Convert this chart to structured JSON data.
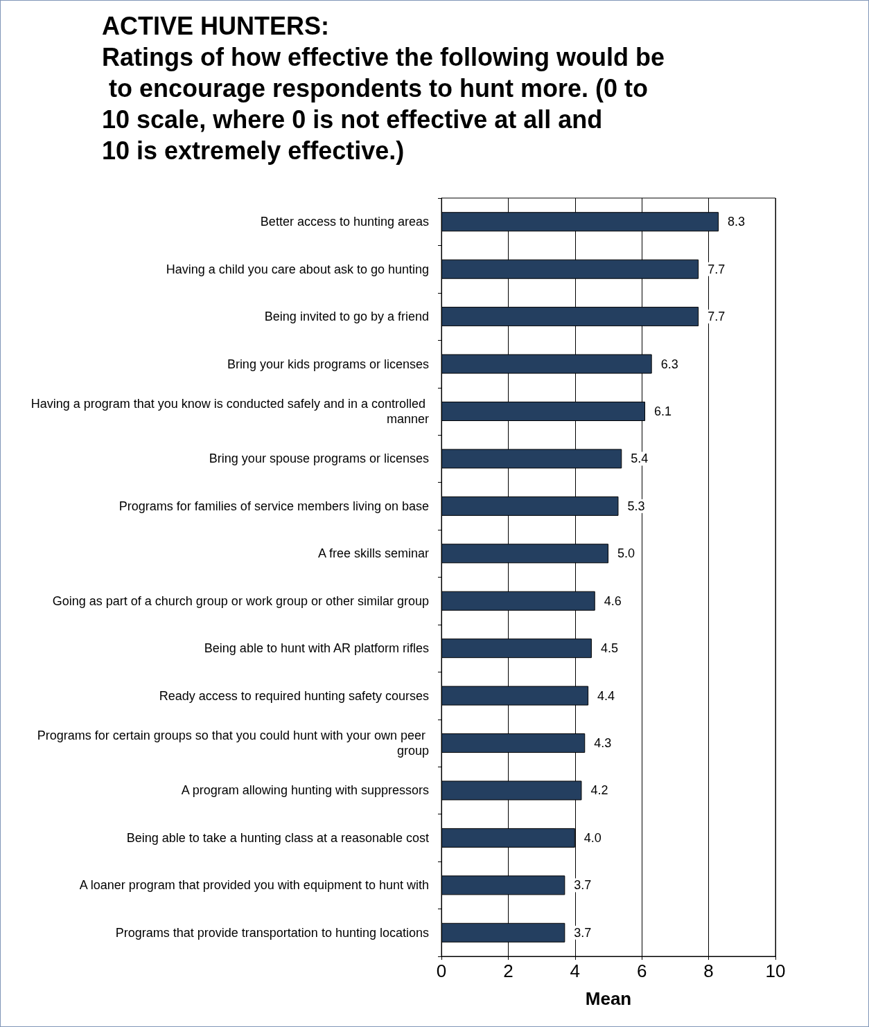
{
  "chart_data": {
    "type": "bar",
    "orientation": "horizontal",
    "title": "ACTIVE HUNTERS:\nRatings of how effective the following would be to encourage respondents to hunt more. (0 to 10 scale, where 0 is not effective at all and 10 is extremely effective.)",
    "xlabel": "Mean",
    "categories": [
      "Better access to hunting areas",
      "Having a child you care about ask to go hunting",
      "Being invited to go by a friend",
      "Bring your kids programs or licenses",
      "Having a program that you know is conducted safely and in a controlled manner",
      "Bring your spouse programs or licenses",
      "Programs for families of service members living on base",
      "A free skills seminar",
      "Going as part of a church group or work group or other similar group",
      "Being able to hunt with AR platform rifles",
      "Ready access to required hunting safety courses",
      "Programs for certain groups so that you could hunt with your own peer group",
      "A program allowing hunting with suppressors",
      "Being able to take a hunting class at a reasonable cost",
      "A loaner program that provided you with equipment to hunt with",
      "Programs that provide transportation to hunting locations"
    ],
    "values": [
      8.3,
      7.7,
      7.7,
      6.3,
      6.1,
      5.4,
      5.3,
      5.0,
      4.6,
      4.5,
      4.4,
      4.3,
      4.2,
      4.0,
      3.7,
      3.7
    ],
    "value_labels": [
      "8.3",
      "7.7",
      "7.7",
      "6.3",
      "6.1",
      "5.4",
      "5.3",
      "5.0",
      "4.6",
      "4.5",
      "4.4",
      "4.3",
      "4.2",
      "4.0",
      "3.7",
      "3.7"
    ],
    "color": "#243f60",
    "xlim": [
      0,
      10
    ],
    "xticks": [
      0,
      2,
      4,
      6,
      8,
      10
    ],
    "grid": "x"
  }
}
